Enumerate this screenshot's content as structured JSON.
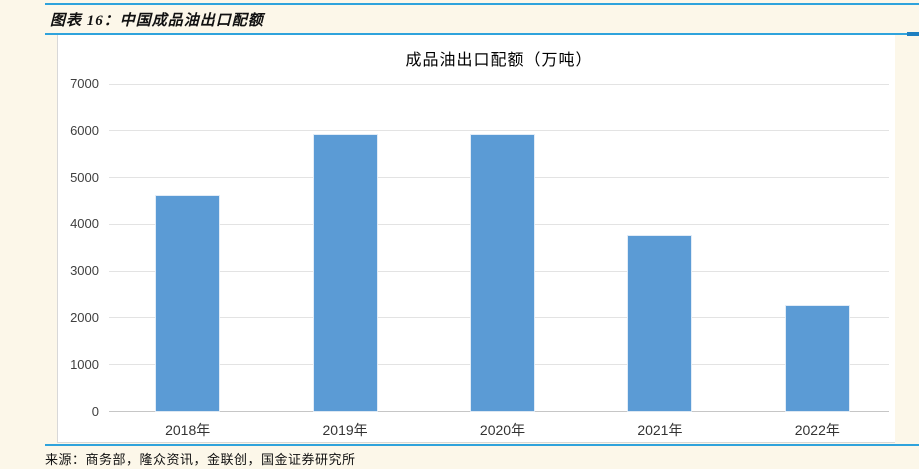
{
  "header": {
    "title": "图表 16：中国成品油出口配额"
  },
  "footer": {
    "source": "来源：商务部，隆众资讯，金联创，国金证券研究所"
  },
  "colors": {
    "background": "#FCF7E9",
    "panel": "#FFFFFF",
    "accent_line": "#2FA3DC",
    "accent_line_cap": "#1E7FC0",
    "bar": "#5B9BD5",
    "gridline": "#E3E3E3",
    "axis_text": "#3F3F3F"
  },
  "chart_data": {
    "type": "bar",
    "title": "成品油出口配额（万吨）",
    "categories": [
      "2018年",
      "2019年",
      "2020年",
      "2021年",
      "2022年"
    ],
    "values": [
      4600,
      5900,
      5900,
      3750,
      2250
    ],
    "xlabel": "",
    "ylabel": "",
    "ylim": [
      0,
      7000
    ],
    "ytick_step": 1000,
    "grid": "horizontal",
    "legend": "none",
    "bar_color": "#5B9BD5"
  }
}
